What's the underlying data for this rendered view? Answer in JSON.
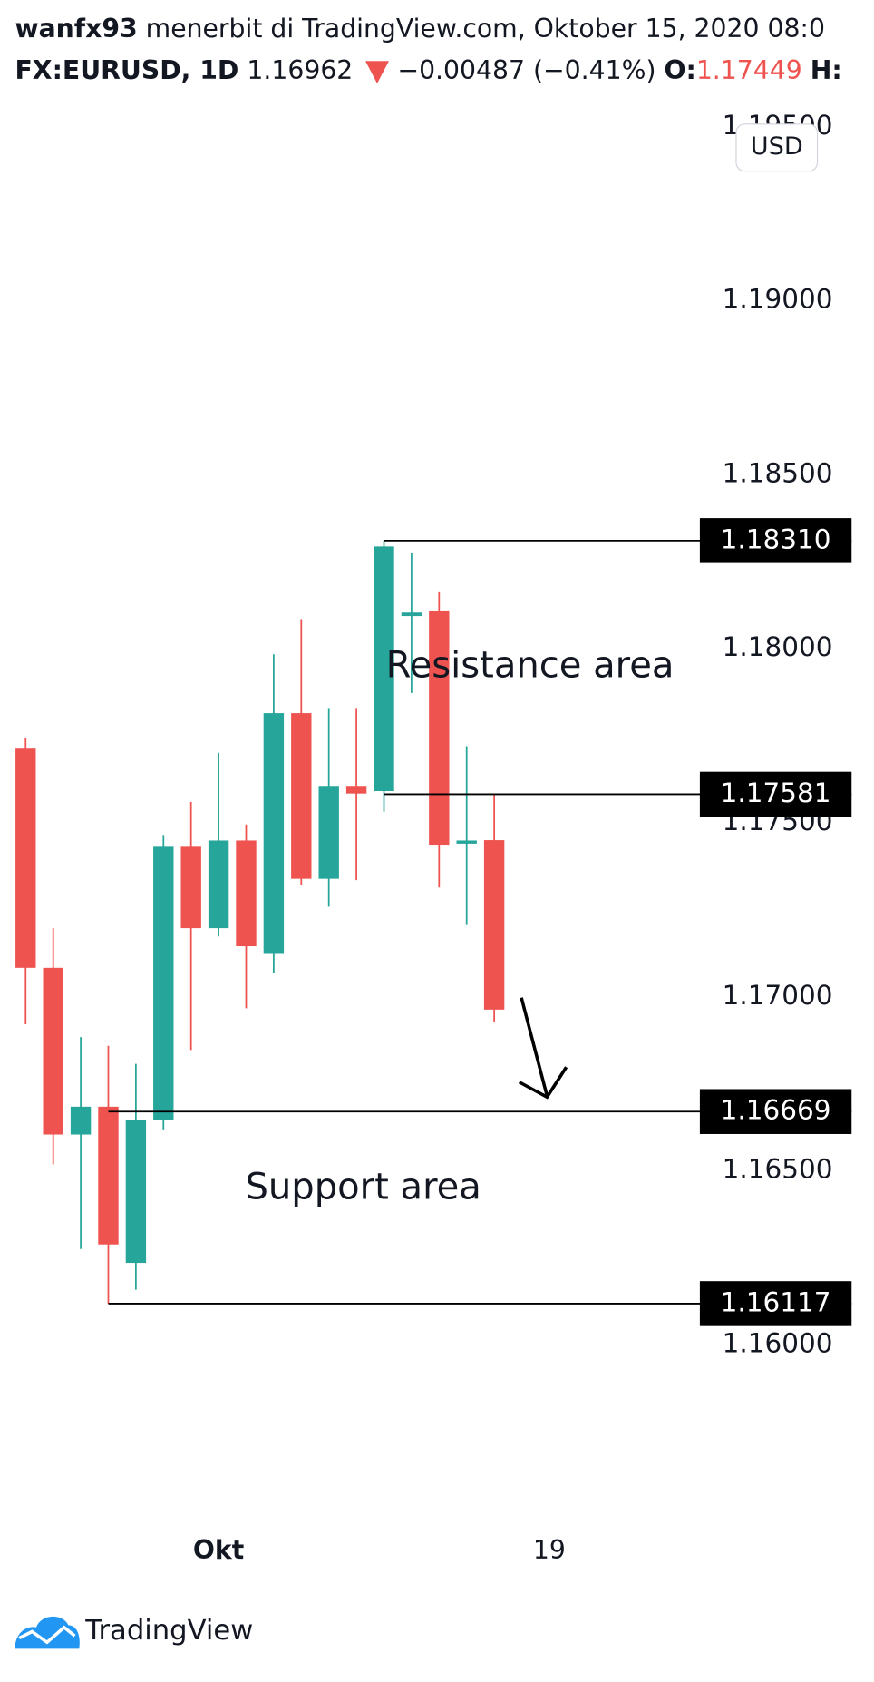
{
  "header": {
    "author": "wanfx93",
    "published": "menerbit di TradingView.com, Oktober 15, 2020 08:0",
    "symbol": "FX:EURUSD, 1D",
    "last": "1.16962",
    "change": "−0.00487 (−0.41%)",
    "open_label": "O:",
    "open_value": "1.17449",
    "high_label": "H:"
  },
  "currency_button": "USD",
  "footer": {
    "brand": "TradingView"
  },
  "chart_data": {
    "type": "candlestick",
    "up_color": "#26a69a",
    "down_color": "#ef5350",
    "x": [
      0,
      1,
      2,
      3,
      4,
      5,
      6,
      7,
      8,
      9,
      10,
      11,
      12,
      13,
      14,
      15,
      16,
      17
    ],
    "open": [
      1.17712,
      1.17082,
      1.16603,
      1.16683,
      1.16234,
      1.16646,
      1.1743,
      1.17196,
      1.17448,
      1.17122,
      1.17814,
      1.17338,
      1.17605,
      1.1759,
      1.18093,
      1.18109,
      1.17439,
      1.17449
    ],
    "high": [
      1.17743,
      1.17196,
      1.16883,
      1.16858,
      1.16806,
      1.17464,
      1.17559,
      1.177,
      1.17494,
      1.17983,
      1.18084,
      1.17829,
      1.17829,
      1.1831,
      1.18275,
      1.18164,
      1.17719,
      1.17583
    ],
    "low": [
      1.1692,
      1.16517,
      1.16274,
      1.16117,
      1.16157,
      1.16615,
      1.16846,
      1.17172,
      1.16966,
      1.17067,
      1.17319,
      1.17258,
      1.17334,
      1.17531,
      1.17872,
      1.17313,
      1.17205,
      1.16926
    ],
    "close": [
      1.17082,
      1.16603,
      1.16683,
      1.16287,
      1.16646,
      1.1743,
      1.17196,
      1.17448,
      1.17144,
      1.17814,
      1.17338,
      1.17605,
      1.17583,
      1.18293,
      1.18103,
      1.17436,
      1.17448,
      1.16962
    ],
    "xlim": [
      -0.93,
      24.46
    ],
    "xticks": [
      {
        "value": 7,
        "label": "Okt"
      },
      19
    ],
    "ylim": [
      1.155,
      1.19556
    ],
    "yticks": [
      {
        "value": 1.16,
        "label": "1.16000"
      },
      {
        "value": 1.165,
        "label": "1.16500"
      },
      {
        "value": 1.17,
        "label": "1.17000"
      },
      {
        "value": 1.175,
        "label": "1.17500"
      },
      {
        "value": 1.18,
        "label": "1.18000"
      },
      {
        "value": 1.185,
        "label": "1.18500"
      },
      {
        "value": 1.19,
        "label": "1.19000"
      },
      {
        "value": 1.195,
        "label": "1.19500"
      }
    ],
    "levels": [
      {
        "value": 1.1831,
        "label": "1.18310",
        "from_x": 13
      },
      {
        "value": 1.17581,
        "label": "1.17581",
        "from_x": 13
      },
      {
        "value": 1.16669,
        "label": "1.16669",
        "from_x": 3
      },
      {
        "value": 1.16117,
        "label": "1.16117",
        "from_x": 3
      }
    ],
    "annotations": [
      "Resistance area",
      "Support area"
    ]
  }
}
